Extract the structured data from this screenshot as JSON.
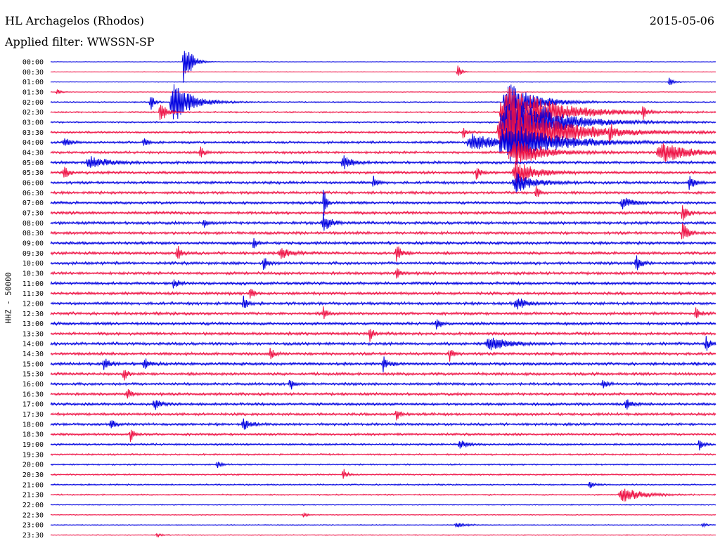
{
  "header": {
    "station": "HL Archagelos (Rhodos)",
    "filter": "Applied filter: WWSSN-SP",
    "date": "2015-05-06"
  },
  "colors": {
    "trace_a": "#0000e0",
    "trace_b": "#ee1144",
    "text": "#000000"
  },
  "chart_data": {
    "type": "line",
    "title": "HL Archagelos (Rhodos)",
    "subtitle": "Applied filter: WWSSN-SP",
    "ylabel": "HHZ - 50000",
    "xlabel": "",
    "rows": [
      "00:00",
      "00:30",
      "01:00",
      "01:30",
      "02:00",
      "02:30",
      "03:00",
      "03:30",
      "04:00",
      "04:30",
      "05:00",
      "05:30",
      "06:00",
      "06:30",
      "07:00",
      "07:30",
      "08:00",
      "08:30",
      "09:00",
      "09:30",
      "10:00",
      "10:30",
      "11:00",
      "11:30",
      "12:00",
      "12:30",
      "13:00",
      "13:30",
      "14:00",
      "14:30",
      "15:00",
      "15:30",
      "16:00",
      "16:30",
      "17:00",
      "17:30",
      "18:00",
      "18:30",
      "19:00",
      "19:30",
      "20:00",
      "20:30",
      "21:00",
      "21:30",
      "22:00",
      "22:30",
      "23:00",
      "23:30"
    ],
    "row_colors_cycle": [
      "#0000e0",
      "#ee1144"
    ],
    "noise_level": [
      0.15,
      0.15,
      0.15,
      0.2,
      0.35,
      0.45,
      0.5,
      0.6,
      0.7,
      0.75,
      0.8,
      0.8,
      0.8,
      0.8,
      0.8,
      0.85,
      0.85,
      0.85,
      0.85,
      0.85,
      0.85,
      0.85,
      0.85,
      0.85,
      0.85,
      0.85,
      0.85,
      0.85,
      0.85,
      0.85,
      0.85,
      0.85,
      0.8,
      0.8,
      0.8,
      0.8,
      0.75,
      0.7,
      0.6,
      0.5,
      0.45,
      0.45,
      0.45,
      0.4,
      0.3,
      0.25,
      0.25,
      0.25
    ],
    "events": [
      {
        "row": 0,
        "x": 0.2,
        "amp": 40,
        "w": 0.006
      },
      {
        "row": 0,
        "x": 0.21,
        "amp": 8,
        "w": 0.008
      },
      {
        "row": 1,
        "x": 0.612,
        "amp": 10,
        "w": 0.004
      },
      {
        "row": 2,
        "x": 0.93,
        "amp": 6,
        "w": 0.006
      },
      {
        "row": 3,
        "x": 0.01,
        "amp": 5,
        "w": 0.004
      },
      {
        "row": 4,
        "x": 0.15,
        "amp": 14,
        "w": 0.004
      },
      {
        "row": 4,
        "x": 0.185,
        "amp": 30,
        "w": 0.02
      },
      {
        "row": 4,
        "x": 0.69,
        "amp": 28,
        "w": 0.03
      },
      {
        "row": 5,
        "x": 0.165,
        "amp": 18,
        "w": 0.006
      },
      {
        "row": 5,
        "x": 0.69,
        "amp": 40,
        "w": 0.05
      },
      {
        "row": 5,
        "x": 0.89,
        "amp": 12,
        "w": 0.004
      },
      {
        "row": 6,
        "x": 0.69,
        "amp": 40,
        "w": 0.05
      },
      {
        "row": 6,
        "x": 0.74,
        "amp": 10,
        "w": 0.006
      },
      {
        "row": 7,
        "x": 0.69,
        "amp": 40,
        "w": 0.06
      },
      {
        "row": 7,
        "x": 0.62,
        "amp": 10,
        "w": 0.004
      },
      {
        "row": 7,
        "x": 0.84,
        "amp": 12,
        "w": 0.004
      },
      {
        "row": 8,
        "x": 0.635,
        "amp": 12,
        "w": 0.03
      },
      {
        "row": 8,
        "x": 0.69,
        "amp": 30,
        "w": 0.05
      },
      {
        "row": 8,
        "x": 0.02,
        "amp": 8,
        "w": 0.006
      },
      {
        "row": 8,
        "x": 0.14,
        "amp": 10,
        "w": 0.004
      },
      {
        "row": 9,
        "x": 0.225,
        "amp": 10,
        "w": 0.004
      },
      {
        "row": 9,
        "x": 0.92,
        "amp": 14,
        "w": 0.03
      },
      {
        "row": 9,
        "x": 0.7,
        "amp": 20,
        "w": 0.03
      },
      {
        "row": 10,
        "x": 0.06,
        "amp": 8,
        "w": 0.02
      },
      {
        "row": 10,
        "x": 0.44,
        "amp": 10,
        "w": 0.01
      },
      {
        "row": 11,
        "x": 0.02,
        "amp": 14,
        "w": 0.004
      },
      {
        "row": 11,
        "x": 0.64,
        "amp": 12,
        "w": 0.004
      },
      {
        "row": 11,
        "x": 0.7,
        "amp": 20,
        "w": 0.02
      },
      {
        "row": 12,
        "x": 0.485,
        "amp": 10,
        "w": 0.004
      },
      {
        "row": 12,
        "x": 0.7,
        "amp": 14,
        "w": 0.02
      },
      {
        "row": 12,
        "x": 0.96,
        "amp": 10,
        "w": 0.006
      },
      {
        "row": 13,
        "x": 0.73,
        "amp": 10,
        "w": 0.004
      },
      {
        "row": 14,
        "x": 0.41,
        "amp": 30,
        "w": 0.003
      },
      {
        "row": 14,
        "x": 0.86,
        "amp": 10,
        "w": 0.01
      },
      {
        "row": 15,
        "x": 0.95,
        "amp": 14,
        "w": 0.006
      },
      {
        "row": 16,
        "x": 0.41,
        "amp": 14,
        "w": 0.008
      },
      {
        "row": 16,
        "x": 0.23,
        "amp": 8,
        "w": 0.004
      },
      {
        "row": 17,
        "x": 0.95,
        "amp": 16,
        "w": 0.006
      },
      {
        "row": 18,
        "x": 0.305,
        "amp": 10,
        "w": 0.004
      },
      {
        "row": 19,
        "x": 0.19,
        "amp": 14,
        "w": 0.004
      },
      {
        "row": 19,
        "x": 0.345,
        "amp": 8,
        "w": 0.01
      },
      {
        "row": 19,
        "x": 0.52,
        "amp": 12,
        "w": 0.006
      },
      {
        "row": 20,
        "x": 0.32,
        "amp": 12,
        "w": 0.004
      },
      {
        "row": 20,
        "x": 0.88,
        "amp": 12,
        "w": 0.006
      },
      {
        "row": 21,
        "x": 0.52,
        "amp": 10,
        "w": 0.004
      },
      {
        "row": 22,
        "x": 0.185,
        "amp": 10,
        "w": 0.004
      },
      {
        "row": 23,
        "x": 0.3,
        "amp": 10,
        "w": 0.004
      },
      {
        "row": 24,
        "x": 0.29,
        "amp": 12,
        "w": 0.004
      },
      {
        "row": 24,
        "x": 0.7,
        "amp": 10,
        "w": 0.01
      },
      {
        "row": 25,
        "x": 0.41,
        "amp": 10,
        "w": 0.004
      },
      {
        "row": 25,
        "x": 0.97,
        "amp": 10,
        "w": 0.004
      },
      {
        "row": 26,
        "x": 0.58,
        "amp": 12,
        "w": 0.004
      },
      {
        "row": 27,
        "x": 0.48,
        "amp": 10,
        "w": 0.004
      },
      {
        "row": 28,
        "x": 0.66,
        "amp": 10,
        "w": 0.02
      },
      {
        "row": 28,
        "x": 0.985,
        "amp": 12,
        "w": 0.004
      },
      {
        "row": 29,
        "x": 0.6,
        "amp": 10,
        "w": 0.004
      },
      {
        "row": 29,
        "x": 0.33,
        "amp": 10,
        "w": 0.004
      },
      {
        "row": 30,
        "x": 0.08,
        "amp": 10,
        "w": 0.006
      },
      {
        "row": 30,
        "x": 0.14,
        "amp": 10,
        "w": 0.006
      },
      {
        "row": 30,
        "x": 0.5,
        "amp": 10,
        "w": 0.006
      },
      {
        "row": 31,
        "x": 0.11,
        "amp": 10,
        "w": 0.004
      },
      {
        "row": 32,
        "x": 0.83,
        "amp": 10,
        "w": 0.004
      },
      {
        "row": 32,
        "x": 0.36,
        "amp": 10,
        "w": 0.004
      },
      {
        "row": 33,
        "x": 0.115,
        "amp": 10,
        "w": 0.004
      },
      {
        "row": 34,
        "x": 0.155,
        "amp": 10,
        "w": 0.006
      },
      {
        "row": 34,
        "x": 0.865,
        "amp": 8,
        "w": 0.006
      },
      {
        "row": 35,
        "x": 0.52,
        "amp": 10,
        "w": 0.004
      },
      {
        "row": 36,
        "x": 0.09,
        "amp": 10,
        "w": 0.004
      },
      {
        "row": 36,
        "x": 0.29,
        "amp": 8,
        "w": 0.008
      },
      {
        "row": 37,
        "x": 0.12,
        "amp": 12,
        "w": 0.004
      },
      {
        "row": 38,
        "x": 0.615,
        "amp": 8,
        "w": 0.008
      },
      {
        "row": 38,
        "x": 0.975,
        "amp": 8,
        "w": 0.004
      },
      {
        "row": 40,
        "x": 0.25,
        "amp": 6,
        "w": 0.004
      },
      {
        "row": 41,
        "x": 0.44,
        "amp": 10,
        "w": 0.004
      },
      {
        "row": 42,
        "x": 0.81,
        "amp": 8,
        "w": 0.004
      },
      {
        "row": 43,
        "x": 0.86,
        "amp": 12,
        "w": 0.02
      },
      {
        "row": 45,
        "x": 0.38,
        "amp": 4,
        "w": 0.004
      },
      {
        "row": 46,
        "x": 0.61,
        "amp": 4,
        "w": 0.01
      },
      {
        "row": 46,
        "x": 0.98,
        "amp": 4,
        "w": 0.004
      },
      {
        "row": 47,
        "x": 0.16,
        "amp": 4,
        "w": 0.004
      }
    ]
  }
}
